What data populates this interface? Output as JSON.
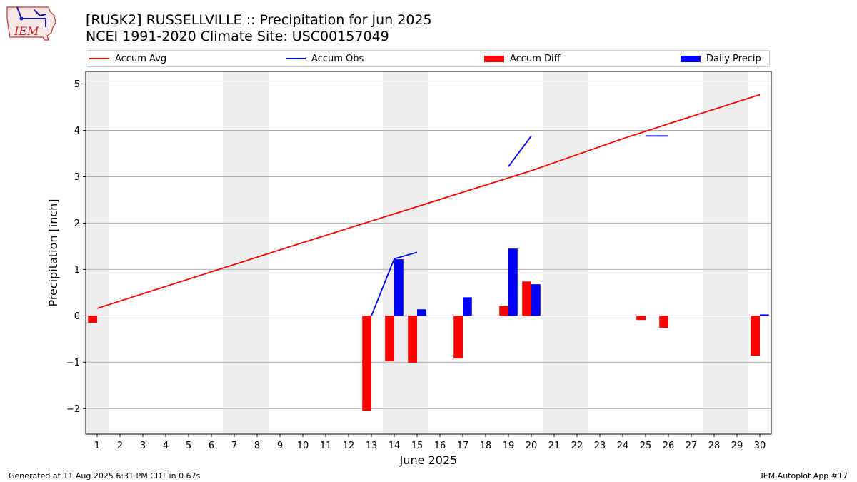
{
  "header": {
    "title_line1": "[RUSK2] RUSSELLVILLE :: Precipitation for Jun 2025",
    "title_line2": "NCEI 1991-2020 Climate Site: USC00157049",
    "logo_text": "IEM"
  },
  "footer": {
    "left": "Generated at 11 Aug 2025 6:31 PM CDT in 0.67s",
    "right": "IEM Autoplot App #17"
  },
  "legend": [
    {
      "label": "Accum Avg",
      "color": "#ff0000",
      "kind": "line"
    },
    {
      "label": "Accum Obs",
      "color": "#0000ff",
      "kind": "line"
    },
    {
      "label": "Accum Diff",
      "color": "#ff0000",
      "kind": "box"
    },
    {
      "label": "Daily Precip",
      "color": "#0000ff",
      "kind": "box"
    }
  ],
  "chart_data": {
    "type": "bar",
    "xlabel": "June 2025",
    "ylabel": "Precipitation [inch]",
    "xlim": [
      0.5,
      30.5
    ],
    "ylim": [
      -2.55,
      5.27
    ],
    "yticks": [
      -2,
      -1,
      0,
      1,
      2,
      3,
      4,
      5
    ],
    "x_ticks": [
      1,
      2,
      3,
      4,
      5,
      6,
      7,
      8,
      9,
      10,
      11,
      12,
      13,
      14,
      15,
      16,
      17,
      18,
      19,
      20,
      21,
      22,
      23,
      24,
      25,
      26,
      27,
      28,
      29,
      30
    ],
    "grid": "horizontal",
    "weekend_shading": [
      [
        0.5,
        1.5
      ],
      [
        6.5,
        8.5
      ],
      [
        13.5,
        15.5
      ],
      [
        20.5,
        22.5
      ],
      [
        27.5,
        29.5
      ]
    ],
    "colors": {
      "avg": "#ff0000",
      "obs": "#0000ff",
      "diff": "#ff0000",
      "daily": "#0000ff",
      "shade": "#eeeeee"
    },
    "accum_avg": {
      "x": [
        1,
        10,
        20,
        24,
        26,
        30
      ],
      "y": [
        0.16,
        1.58,
        3.13,
        3.82,
        4.14,
        4.77
      ]
    },
    "accum_obs_segments": [
      {
        "x": [
          13,
          14,
          15
        ],
        "y": [
          0.0,
          1.23,
          1.37
        ]
      },
      {
        "x": [
          19,
          20
        ],
        "y": [
          3.22,
          3.88
        ]
      },
      {
        "x": [
          25,
          26
        ],
        "y": [
          3.88,
          3.88
        ]
      }
    ],
    "accum_diff": [
      {
        "day": 1,
        "value": -0.15
      },
      {
        "day": 13,
        "value": -2.05
      },
      {
        "day": 14,
        "value": -0.98
      },
      {
        "day": 15,
        "value": -1.01
      },
      {
        "day": 17,
        "value": -0.92
      },
      {
        "day": 19,
        "value": 0.21
      },
      {
        "day": 20,
        "value": 0.74
      },
      {
        "day": 25,
        "value": -0.09
      },
      {
        "day": 26,
        "value": -0.26
      },
      {
        "day": 30,
        "value": -0.86
      }
    ],
    "daily_precip": [
      {
        "day": 14,
        "value": 1.22
      },
      {
        "day": 15,
        "value": 0.14
      },
      {
        "day": 17,
        "value": 0.4
      },
      {
        "day": 19,
        "value": 1.45
      },
      {
        "day": 20,
        "value": 0.68
      },
      {
        "day": 30,
        "value": 0.03
      }
    ]
  }
}
